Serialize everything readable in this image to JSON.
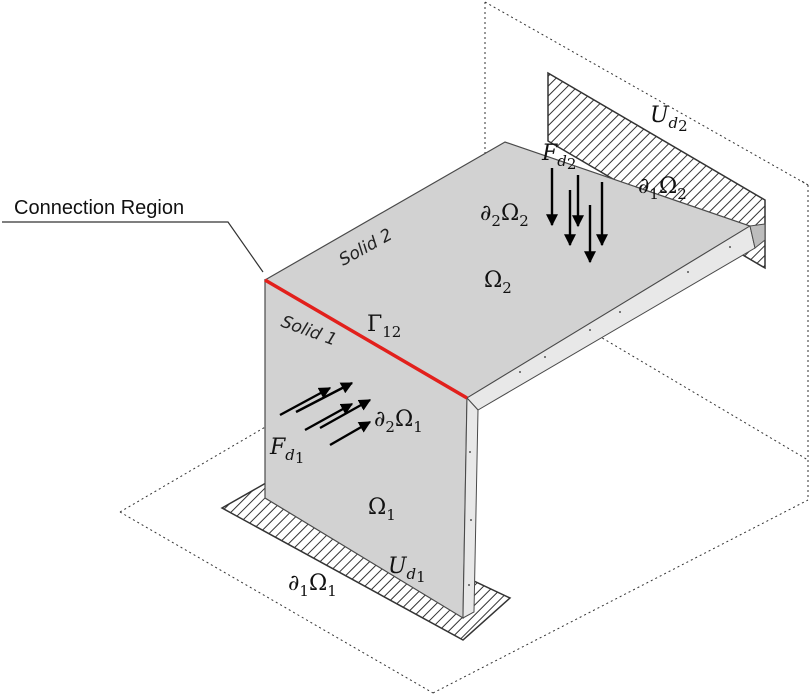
{
  "diagram": {
    "callout": {
      "text": "Connection Region"
    },
    "solids": [
      {
        "label": "Solid 2"
      },
      {
        "label": "Solid 1"
      }
    ],
    "labels": {
      "omega2": {
        "main": "Ω",
        "sub": "2"
      },
      "omega1": {
        "main": "Ω",
        "sub": "1"
      },
      "gamma12": {
        "main": "Γ",
        "sub": "12"
      },
      "d2_omega2": {
        "pre": "∂",
        "pre_sub": "2",
        "main": "Ω",
        "sub": "2"
      },
      "d1_omega2": {
        "pre": "∂",
        "pre_sub": "1",
        "main": "Ω",
        "sub": "2"
      },
      "d2_omega1": {
        "pre": "∂",
        "pre_sub": "2",
        "main": "Ω",
        "sub": "1"
      },
      "d1_omega1": {
        "pre": "∂",
        "pre_sub": "1",
        "main": "Ω",
        "sub": "1"
      },
      "fd2": {
        "main": "F",
        "sub": "d",
        "subsub": "2"
      },
      "fd1": {
        "main": "F",
        "sub": "d",
        "subsub": "1"
      },
      "ud2": {
        "main": "U",
        "sub": "d",
        "subsub": "2"
      },
      "ud1": {
        "main": "U",
        "sub": "d",
        "subsub": "1"
      }
    },
    "colors": {
      "surface": "#d2d2d2",
      "interface": "#e2201c",
      "edge": "#4a4a4a",
      "hatch": "#333333"
    }
  }
}
